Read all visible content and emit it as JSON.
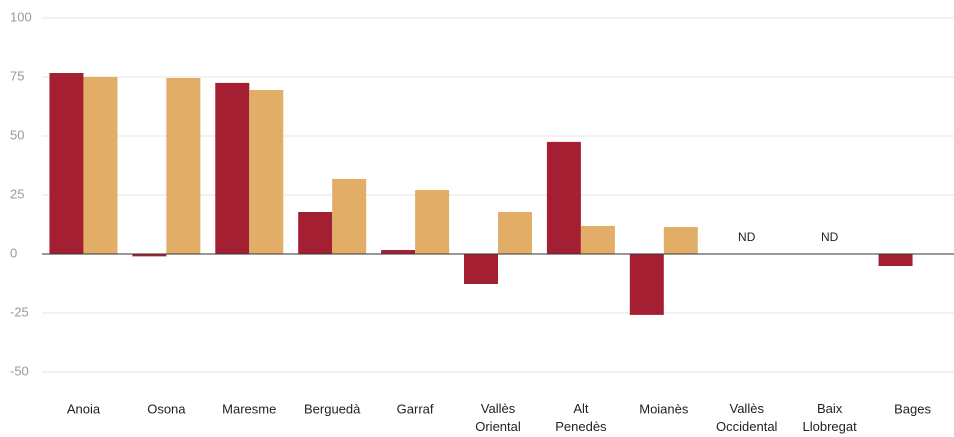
{
  "chart_data": {
    "type": "bar",
    "categories": [
      "Anoia",
      "Osona",
      "Maresme",
      "Berguedà",
      "Garraf",
      "Vallès Oriental",
      "Alt Penedès",
      "Moianès",
      "Vallès Occidental",
      "Baix Llobregat",
      "Bages"
    ],
    "series": [
      {
        "color": "#a51f33",
        "values": [
          76.7,
          -1,
          72.5,
          17.8,
          1.7,
          -12.7,
          47.5,
          -25.8,
          null,
          null,
          -5.1
        ]
      },
      {
        "color": "#e2ad66",
        "values": [
          75,
          74.6,
          69.5,
          31.8,
          27.1,
          17.8,
          11.9,
          11.4,
          null,
          null,
          null
        ]
      }
    ],
    "annotations": [
      {
        "text": "ND",
        "x": "Vallès Occidental"
      },
      {
        "text": "ND",
        "x": "Baix Llobregat"
      }
    ],
    "ylim": [
      -50,
      100
    ],
    "yticks": [
      -50,
      -25,
      0,
      25,
      50,
      75,
      100
    ],
    "grid": true
  }
}
